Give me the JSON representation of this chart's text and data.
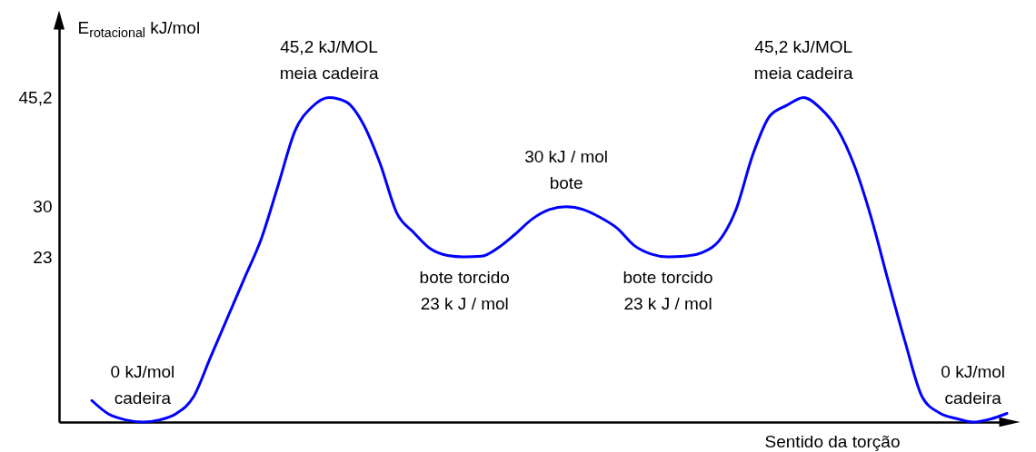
{
  "chart_data": {
    "type": "line",
    "xlabel": "Sentido da torção",
    "ylabel": "E$_{rotacional}$ kJ/mol",
    "tick_labels": "y",
    "categories": [
      null,
      null,
      null,
      null,
      null,
      null,
      null,
      null,
      null,
      null,
      null,
      null,
      null,
      null,
      null,
      null,
      null,
      null,
      null,
      null,
      null,
      null,
      null,
      null,
      null,
      null,
      null,
      null,
      null,
      null,
      null,
      null,
      null,
      null,
      null,
      null,
      null,
      null,
      null,
      null,
      null,
      null,
      null,
      null,
      null,
      null,
      null,
      null,
      null,
      null,
      null,
      null,
      null,
      null,
      null
    ],
    "ylim": [
      0,
      56
    ],
    "yticks": [
      23,
      30,
      {
        "value": 45.2,
        "label": "45,2"
      }
    ],
    "series": [
      {
        "color": "#0000ff",
        "values": [
          3.0,
          1.1,
          0.3,
          0,
          0.3,
          1.2,
          3.5,
          9.0,
          14.5,
          20.0,
          25.5,
          33.0,
          40.6,
          43.9,
          45.2,
          44.6,
          41.6,
          36.1,
          29.1,
          26.4,
          24.1,
          23.2,
          23,
          23.1,
          24.3,
          26.2,
          28.3,
          29.6,
          30,
          29.6,
          28.5,
          27.0,
          24.6,
          23.4,
          23,
          23.1,
          23.6,
          25.2,
          29.5,
          37.2,
          42.6,
          44.1,
          45.2,
          43.7,
          40.8,
          35.7,
          28.4,
          19.6,
          11.1,
          3.5,
          1.3,
          0.5,
          0,
          0.4,
          1.2
        ],
        "value_labels": [
          null,
          null,
          null,
          "0 kJ/mol\ncadeira",
          null,
          null,
          null,
          null,
          null,
          null,
          null,
          null,
          null,
          null,
          "45,2 kJ/MOL\nmeia cadeira",
          null,
          null,
          null,
          null,
          null,
          null,
          null,
          "bote torcido\n23 k J / mol",
          null,
          null,
          null,
          null,
          null,
          "30 kJ / mol\nbote",
          null,
          null,
          null,
          null,
          null,
          "bote torcido\n23 k J / mol",
          null,
          null,
          null,
          null,
          null,
          null,
          null,
          "45,2 kJ/MOL\nmeia cadeira",
          null,
          null,
          null,
          null,
          null,
          null,
          null,
          null,
          null,
          "0 kJ/mol\ncadeira",
          null,
          null
        ]
      }
    ]
  }
}
